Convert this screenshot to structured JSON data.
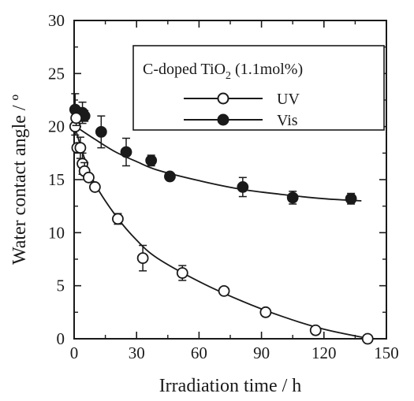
{
  "chart_data": {
    "type": "scatter",
    "xlabel": "Irradiation time / h",
    "ylabel": "Water contact angle / º",
    "xlim": [
      0,
      150
    ],
    "ylim": [
      0,
      30
    ],
    "x_ticks": [
      0,
      30,
      60,
      90,
      120,
      150
    ],
    "y_ticks": [
      0,
      5,
      10,
      15,
      20,
      25,
      30
    ],
    "grid": false,
    "legend_position": "top-right",
    "legend_title_parts": {
      "base": "C-doped TiO",
      "subscript": "2",
      "suffix": " (1.1mol%)"
    },
    "series": [
      {
        "name": "UV",
        "marker": "open-circle",
        "points": [
          {
            "x": 0.5,
            "y": 20.0,
            "err": 0.8
          },
          {
            "x": 1,
            "y": 20.8,
            "err": 0.7
          },
          {
            "x": 1.5,
            "y": 18.0,
            "err": 0
          },
          {
            "x": 3,
            "y": 18.0,
            "err": 1.0
          },
          {
            "x": 4,
            "y": 16.5,
            "err": 1.0
          },
          {
            "x": 5,
            "y": 15.8,
            "err": 0.8
          },
          {
            "x": 7,
            "y": 15.2,
            "err": 0
          },
          {
            "x": 10,
            "y": 14.3,
            "err": 0
          },
          {
            "x": 21,
            "y": 11.3,
            "err": 0.5
          },
          {
            "x": 33,
            "y": 7.6,
            "err": 1.2
          },
          {
            "x": 52,
            "y": 6.2,
            "err": 0.7
          },
          {
            "x": 72,
            "y": 4.5,
            "err": 0
          },
          {
            "x": 92,
            "y": 2.5,
            "err": 0
          },
          {
            "x": 116,
            "y": 0.8,
            "err": 0
          },
          {
            "x": 141,
            "y": 0.0,
            "err": 0
          }
        ],
        "fit": [
          [
            0,
            20.2
          ],
          [
            5,
            17.0
          ],
          [
            10,
            14.6
          ],
          [
            20,
            11.6
          ],
          [
            30,
            9.3
          ],
          [
            40,
            7.6
          ],
          [
            60,
            5.4
          ],
          [
            80,
            3.6
          ],
          [
            100,
            2.1
          ],
          [
            120,
            0.9
          ],
          [
            142,
            0.0
          ]
        ]
      },
      {
        "name": "Vis",
        "marker": "filled-circle",
        "points": [
          {
            "x": 0.5,
            "y": 21.6,
            "err": 1.5
          },
          {
            "x": 4,
            "y": 21.3,
            "err": 1.0
          },
          {
            "x": 5,
            "y": 21.0,
            "err": 0.5
          },
          {
            "x": 13,
            "y": 19.5,
            "err": 1.5
          },
          {
            "x": 25,
            "y": 17.6,
            "err": 1.3
          },
          {
            "x": 37,
            "y": 16.8,
            "err": 0.5
          },
          {
            "x": 46,
            "y": 15.3,
            "err": 0
          },
          {
            "x": 81,
            "y": 14.3,
            "err": 0.9
          },
          {
            "x": 105,
            "y": 13.3,
            "err": 0.6
          },
          {
            "x": 133,
            "y": 13.2,
            "err": 0.5
          }
        ],
        "fit": [
          [
            0,
            20.1
          ],
          [
            10,
            18.8
          ],
          [
            20,
            17.6
          ],
          [
            30,
            16.7
          ],
          [
            40,
            15.9
          ],
          [
            60,
            14.9
          ],
          [
            80,
            14.1
          ],
          [
            100,
            13.6
          ],
          [
            120,
            13.2
          ],
          [
            138,
            13.0
          ]
        ]
      }
    ]
  }
}
